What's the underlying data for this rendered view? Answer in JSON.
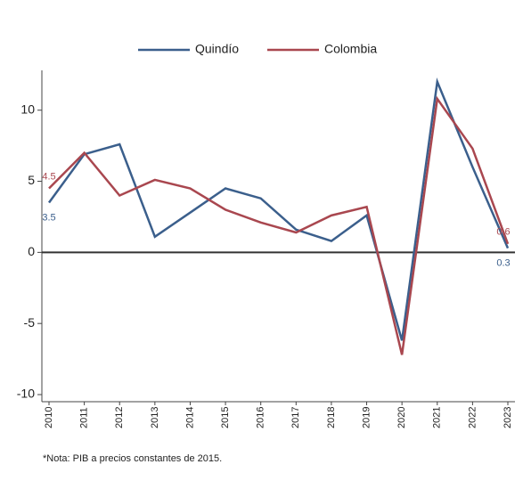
{
  "chart_data": {
    "type": "line",
    "categories": [
      "2010",
      "2011",
      "2012",
      "2013",
      "2014",
      "2015",
      "2016",
      "2017",
      "2018",
      "2019",
      "2020",
      "2021",
      "2022",
      "2023"
    ],
    "series": [
      {
        "name": "Quindío",
        "color": "#3b5f8c",
        "values": [
          3.5,
          6.9,
          7.6,
          1.1,
          2.8,
          4.5,
          3.8,
          1.6,
          0.8,
          2.6,
          -6.2,
          12.0,
          6.0,
          0.3
        ],
        "value_labels": [
          "3.5",
          null,
          null,
          null,
          null,
          null,
          null,
          null,
          null,
          null,
          null,
          null,
          null,
          "0.3"
        ]
      },
      {
        "name": "Colombia",
        "color": "#a9474f",
        "values": [
          4.5,
          7.0,
          4.0,
          5.1,
          4.5,
          3.0,
          2.1,
          1.4,
          2.6,
          3.2,
          -7.2,
          10.8,
          7.3,
          0.6
        ],
        "value_labels": [
          "4.5",
          null,
          null,
          null,
          null,
          null,
          null,
          null,
          null,
          null,
          null,
          null,
          null,
          "0.6"
        ]
      }
    ],
    "ylim": [
      -10.5,
      12.8
    ],
    "yticks": [
      -10,
      -5,
      0,
      5,
      10
    ],
    "note": "*Nota: PIB a precios constantes de 2015."
  }
}
